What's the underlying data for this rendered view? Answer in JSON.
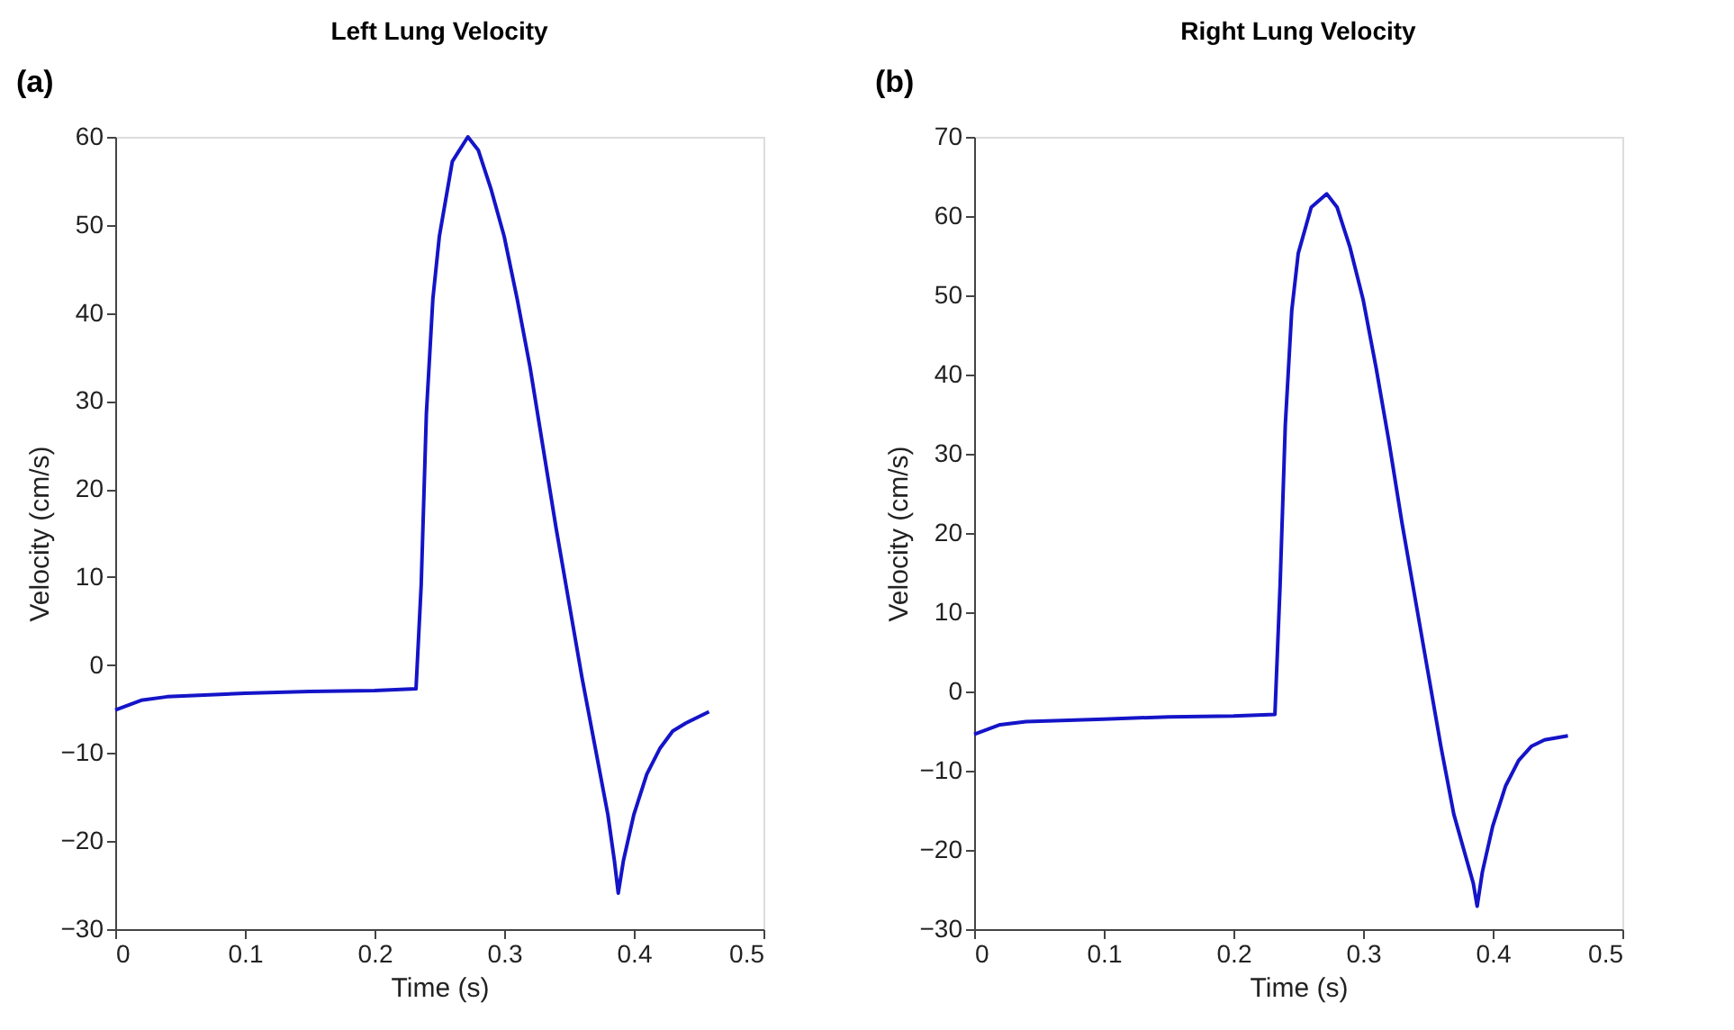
{
  "chart_data": [
    {
      "type": "line",
      "title": "Left Lung Velocity",
      "xlabel": "Time (s)",
      "ylabel": "Velocity (cm/s)",
      "annotations": [
        "(a)"
      ],
      "xlim": [
        0,
        0.5
      ],
      "xticks": [
        0,
        0.1,
        0.2,
        0.3,
        0.4,
        0.5
      ],
      "ylim": [
        -30,
        60
      ],
      "yticks": [
        -30,
        -20,
        -10,
        0,
        10,
        20,
        30,
        40,
        50,
        60
      ],
      "grid": false,
      "marker": "none",
      "line_style": "solid",
      "x": [
        0,
        0.02,
        0.04,
        0.1,
        0.15,
        0.2,
        0.232,
        0.236,
        0.24,
        0.245,
        0.25,
        0.26,
        0.272,
        0.28,
        0.29,
        0.3,
        0.31,
        0.32,
        0.33,
        0.34,
        0.35,
        0.36,
        0.37,
        0.38,
        0.385,
        0.388,
        0.392,
        0.4,
        0.41,
        0.42,
        0.43,
        0.44,
        0.458
      ],
      "series": [
        {
          "color": "#1414c8",
          "values": [
            -5.1,
            -4.0,
            -3.6,
            -3.2,
            -3.0,
            -2.9,
            -2.7,
            9.1,
            28.6,
            41.6,
            48.7,
            57.2,
            60,
            58.5,
            54,
            48.7,
            41.6,
            33.8,
            24.7,
            15.6,
            7.1,
            -1.4,
            -9.2,
            -17,
            -22.2,
            -25.9,
            -22.2,
            -17,
            -12.4,
            -9.5,
            -7.5,
            -6.6,
            -5.3
          ]
        }
      ]
    },
    {
      "type": "line",
      "title": "Right Lung Velocity",
      "xlabel": "Time (s)",
      "ylabel": "Velocity (cm/s)",
      "annotations": [
        "(b)"
      ],
      "xlim": [
        0,
        0.5
      ],
      "xticks": [
        0,
        0.1,
        0.2,
        0.3,
        0.4,
        0.5
      ],
      "ylim": [
        -30,
        70
      ],
      "yticks": [
        -30,
        -20,
        -10,
        0,
        10,
        20,
        30,
        40,
        50,
        60,
        70
      ],
      "grid": false,
      "marker": "none",
      "line_style": "solid",
      "x": [
        0,
        0.02,
        0.04,
        0.1,
        0.15,
        0.2,
        0.232,
        0.236,
        0.24,
        0.245,
        0.25,
        0.26,
        0.272,
        0.28,
        0.29,
        0.3,
        0.31,
        0.32,
        0.33,
        0.34,
        0.35,
        0.36,
        0.37,
        0.38,
        0.385,
        0.388,
        0.392,
        0.4,
        0.41,
        0.42,
        0.43,
        0.44,
        0.458
      ],
      "series": [
        {
          "color": "#1414c8",
          "values": [
            -5.4,
            -4.2,
            -3.8,
            -3.5,
            -3.2,
            -3.1,
            -2.9,
            13.4,
            33.6,
            48.1,
            55.3,
            61.1,
            62.8,
            61.1,
            56,
            49.5,
            40.9,
            31.5,
            21.3,
            11.9,
            2.5,
            -6.9,
            -15.5,
            -21.3,
            -24.2,
            -27.1,
            -22.8,
            -17,
            -11.9,
            -8.7,
            -6.9,
            -6.1,
            -5.6
          ]
        }
      ]
    }
  ]
}
